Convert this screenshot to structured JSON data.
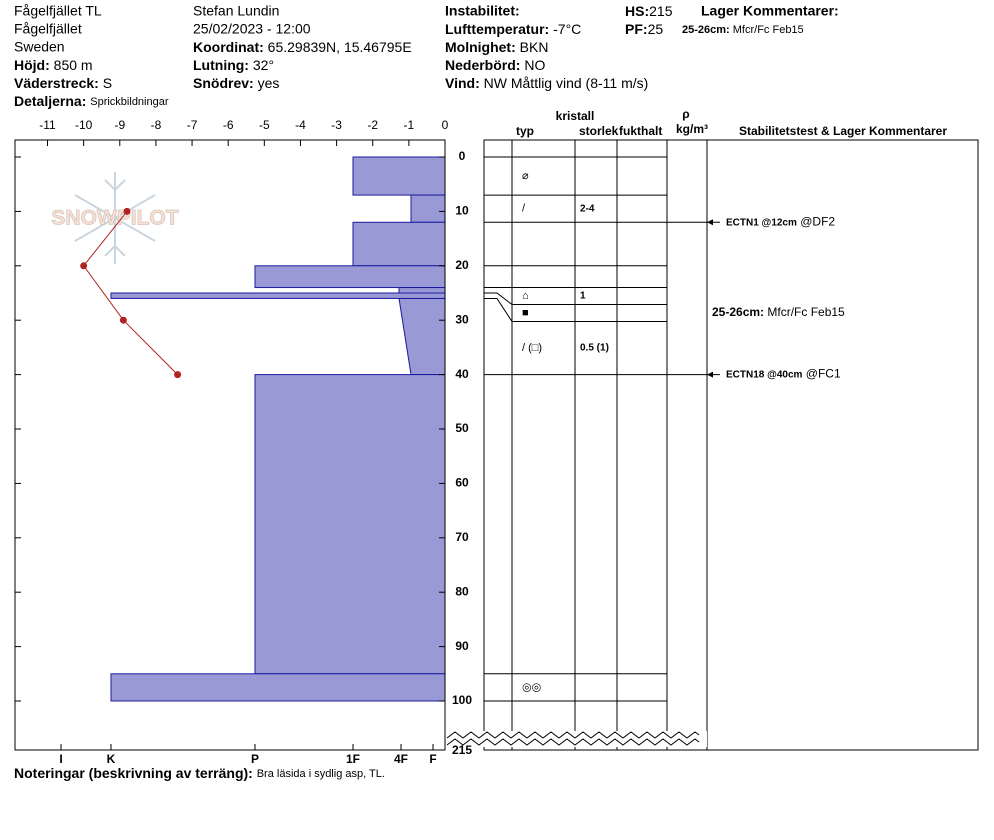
{
  "header": {
    "location": "Fågelfjället TL",
    "area": "Fågelfjället",
    "country": "Sweden",
    "observer": "Stefan Lundin",
    "datetime": "25/02/2023 - 12:00",
    "elevation": {
      "label": "Höjd:",
      "value": "850 m"
    },
    "aspect": {
      "label": "Väderstreck:",
      "value": "S"
    },
    "details": {
      "label": "Detaljerna:",
      "value": "Sprickbildningar"
    },
    "coordinates": {
      "label": "Koordinat:",
      "value": "65.29839N, 15.46795E"
    },
    "slope": {
      "label": "Lutning:",
      "value": "32°"
    },
    "blowing_snow": {
      "label": "Snödrev:",
      "value": "yes"
    },
    "instability": {
      "label": "Instabilitet:"
    },
    "air_temp": {
      "label": "Lufttemperatur:",
      "value": "-7°C"
    },
    "sky": {
      "label": "Molnighet:",
      "value": "BKN"
    },
    "precip": {
      "label": "Nederbörd:",
      "value": "NO"
    },
    "wind": {
      "label": "Vind:",
      "value": "NW Måttlig vind (8-11 m/s)"
    },
    "hs": {
      "label": "HS:",
      "value": 215
    },
    "pf": {
      "label": "PF:",
      "value": 25
    },
    "layer_comments": {
      "label": "Lager Kommentarer:"
    }
  },
  "chart_data": {
    "type": "profile",
    "logo": "SNOWPILOT",
    "xlim": [
      -11.9,
      0
    ],
    "xticks": [
      -11,
      -10,
      -9,
      -8,
      -7,
      -6,
      -5,
      -4,
      -3,
      -2,
      -1,
      0
    ],
    "ylim": [
      0,
      100
    ],
    "yticks": [
      0,
      10,
      20,
      30,
      40,
      50,
      60,
      70,
      80,
      90,
      100
    ],
    "hardness_lim": [
      0,
      430
    ],
    "hardness_ticks": [
      {
        "value": 384,
        "label": "I"
      },
      {
        "value": 334,
        "label": "K"
      },
      {
        "value": 190,
        "label": "P"
      },
      {
        "value": 92,
        "label": "1F"
      },
      {
        "value": 44,
        "label": "4F"
      },
      {
        "value": 12,
        "label": "F"
      }
    ],
    "temperature": {
      "depth": [
        10,
        20,
        30,
        40
      ],
      "values": [
        -8.8,
        -10,
        -8.9,
        -7.4
      ],
      "color": "#b22222"
    },
    "layer_color": "#9999d6",
    "layer_edge": "#1a1aa0",
    "layers": [
      {
        "top": 0,
        "bottom": 7,
        "hardness": 92,
        "grain": "⌀"
      },
      {
        "top": 7,
        "bottom": 12,
        "hardness": 34,
        "grain": "/",
        "size": "2-4"
      },
      {
        "top": 12,
        "bottom": 20,
        "hardness": 92
      },
      {
        "top": 20,
        "bottom": 24,
        "hardness": 190
      },
      {
        "top": 24,
        "bottom": 25,
        "hardness": 46,
        "grain": "⌂",
        "size": 1
      },
      {
        "top": 25,
        "bottom": 26,
        "hardness": 334,
        "grain": "■",
        "comment": {
          "label": "25-26cm:",
          "text": "Mfcr/Fc Feb15"
        }
      },
      {
        "top": 26,
        "bottom": 40,
        "hardness": 46,
        "hardness_bottom": 34,
        "grain": "/ (□)",
        "size": "0.5 (1)"
      },
      {
        "top": 40,
        "bottom": 95,
        "hardness": 190
      },
      {
        "top": 95,
        "bottom": 100,
        "hardness": 334,
        "grain": "◎◎"
      }
    ],
    "tests": [
      {
        "depth": 12,
        "label": "ECTN1 @12cm",
        "result": "@DF2"
      },
      {
        "depth": 40,
        "label": "ECTN18 @40cm",
        "result": "@FC1"
      }
    ],
    "columns": {
      "crystal": "kristall",
      "type": "typ",
      "size": "storlek",
      "moisture": "fukthalt",
      "density": "ρ",
      "density_unit": "kg/m³",
      "comments": "Stabilitetstest & Lager Kommentarer"
    }
  },
  "notes": {
    "label": "Noteringar (beskrivning av terräng):",
    "text": "Bra läsida i sydlig asp, TL."
  }
}
